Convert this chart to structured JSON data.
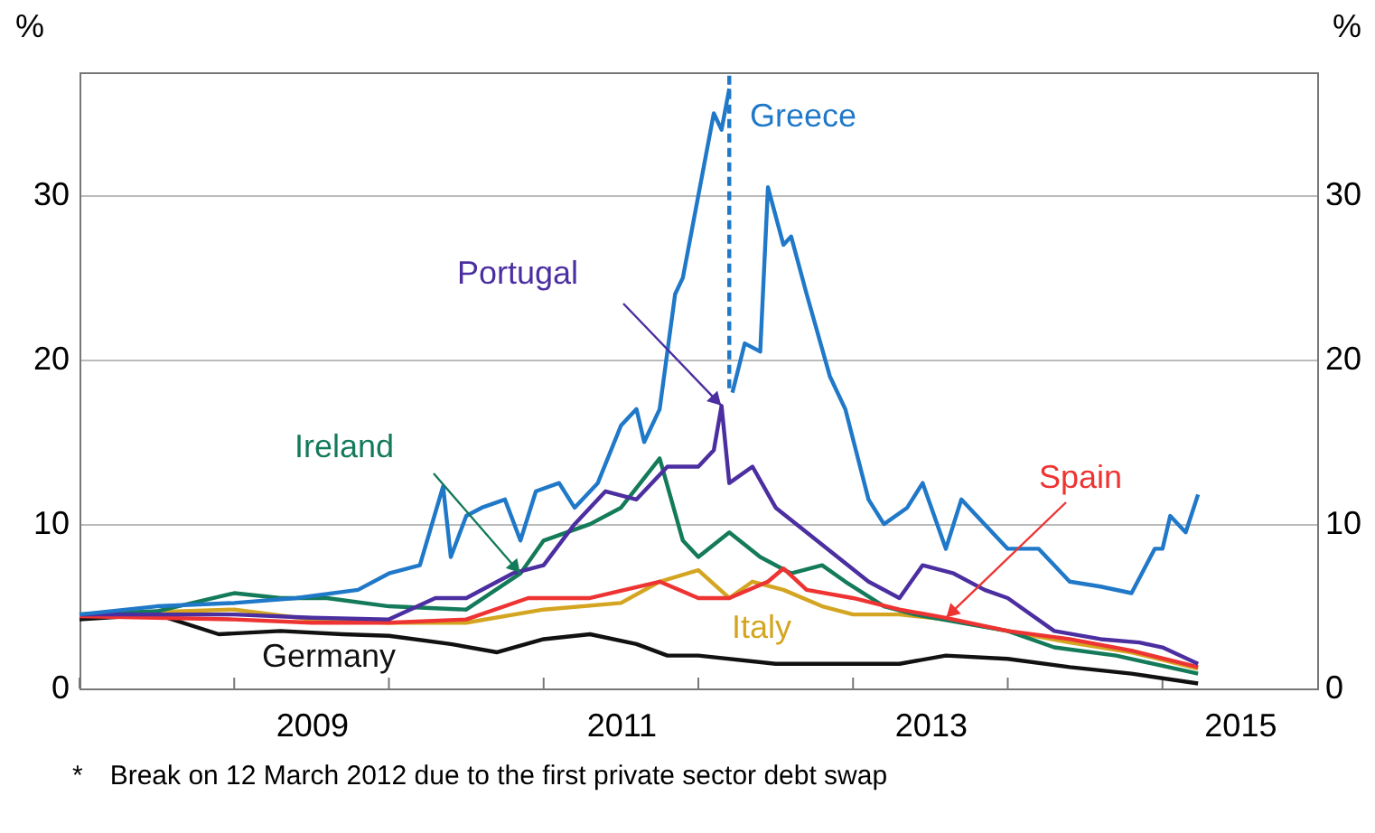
{
  "chart_data": {
    "type": "line",
    "ylabel": "%",
    "y2label": "%",
    "xlim": [
      2008,
      2016
    ],
    "ylim": [
      0,
      37.5
    ],
    "xticks": [
      {
        "value": 2008,
        "label": null
      },
      {
        "value": 2009,
        "label": null
      },
      {
        "value": 2009.5,
        "label": "2009"
      },
      {
        "value": 2010,
        "label": null
      },
      {
        "value": 2011,
        "label": null
      },
      {
        "value": 2011.5,
        "label": "2011"
      },
      {
        "value": 2012,
        "label": null
      },
      {
        "value": 2013,
        "label": null
      },
      {
        "value": 2013.5,
        "label": "2013"
      },
      {
        "value": 2014,
        "label": null
      },
      {
        "value": 2015,
        "label": null
      },
      {
        "value": 2015.5,
        "label": "2015"
      }
    ],
    "yticks": [
      0,
      10,
      20,
      30
    ],
    "y2lim": [
      0,
      37.5
    ],
    "y2ticks": [
      0,
      10,
      20,
      30
    ],
    "grid": "y",
    "legend": false,
    "line_style": "solid",
    "marker": "none",
    "series": [
      {
        "name": "Germany",
        "color": "#111111",
        "x": [
          2008,
          2008.5,
          2008.9,
          2009.3,
          2009.7,
          2010.0,
          2010.4,
          2010.7,
          2011.0,
          2011.3,
          2011.6,
          2011.8,
          2012.0,
          2012.5,
          2012.9,
          2013.3,
          2013.6,
          2014.0,
          2014.4,
          2014.8,
          2015.23
        ],
        "values": [
          4.2,
          4.5,
          3.3,
          3.5,
          3.3,
          3.2,
          2.7,
          2.2,
          3.0,
          3.3,
          2.7,
          2.0,
          2.0,
          1.5,
          1.5,
          1.5,
          2.0,
          1.8,
          1.3,
          0.9,
          0.3
        ]
      },
      {
        "name": "Italy",
        "color": "#d4a520",
        "x": [
          2008,
          2009,
          2009.5,
          2010,
          2010.5,
          2011,
          2011.5,
          2011.75,
          2012.0,
          2012.2,
          2012.35,
          2012.55,
          2012.8,
          2013.0,
          2013.3,
          2013.6,
          2014.0,
          2014.4,
          2014.8,
          2015.23
        ],
        "values": [
          4.5,
          4.8,
          4.2,
          4.0,
          4.0,
          4.8,
          5.2,
          6.5,
          7.2,
          5.5,
          6.5,
          6.0,
          5.0,
          4.5,
          4.5,
          4.2,
          3.5,
          2.8,
          2.2,
          1.2
        ]
      },
      {
        "name": "Ireland",
        "color": "#137a5a",
        "x": [
          2008,
          2008.5,
          2009.0,
          2009.3,
          2009.6,
          2010.0,
          2010.5,
          2010.85,
          2011.0,
          2011.3,
          2011.5,
          2011.75,
          2011.9,
          2012.0,
          2012.2,
          2012.4,
          2012.6,
          2012.8,
          2012.95,
          2013.2,
          2013.4,
          2013.7,
          2014.0,
          2014.3,
          2014.7,
          2015.23
        ],
        "values": [
          4.5,
          4.7,
          5.8,
          5.5,
          5.5,
          5.0,
          4.8,
          7.0,
          9.0,
          10.0,
          11.0,
          14.0,
          9.0,
          8.0,
          9.5,
          8.0,
          7.0,
          7.5,
          6.5,
          5.0,
          4.5,
          4.0,
          3.5,
          2.5,
          2.0,
          0.9
        ]
      },
      {
        "name": "Spain",
        "color": "#ee3333",
        "x": [
          2008,
          2009,
          2009.5,
          2010,
          2010.5,
          2010.9,
          2011.3,
          2011.75,
          2012.0,
          2012.2,
          2012.45,
          2012.55,
          2012.7,
          2013.0,
          2013.3,
          2013.6,
          2014.0,
          2014.4,
          2014.8,
          2015.23
        ],
        "values": [
          4.4,
          4.2,
          4.0,
          4.0,
          4.2,
          5.5,
          5.5,
          6.5,
          5.5,
          5.5,
          6.5,
          7.3,
          6.0,
          5.5,
          4.8,
          4.3,
          3.5,
          3.0,
          2.3,
          1.3
        ]
      },
      {
        "name": "Portugal",
        "color": "#4b2ea0",
        "x": [
          2008,
          2009,
          2009.5,
          2010,
          2010.3,
          2010.5,
          2010.8,
          2011.0,
          2011.2,
          2011.4,
          2011.6,
          2011.8,
          2012.0,
          2012.1,
          2012.15,
          2012.2,
          2012.35,
          2012.5,
          2012.7,
          2012.9,
          2013.1,
          2013.3,
          2013.45,
          2013.65,
          2013.85,
          2014.0,
          2014.3,
          2014.6,
          2014.85,
          2015.0,
          2015.23
        ],
        "values": [
          4.5,
          4.5,
          4.3,
          4.2,
          5.5,
          5.5,
          7.0,
          7.5,
          10.0,
          12.0,
          11.5,
          13.5,
          13.5,
          14.5,
          17.2,
          12.5,
          13.5,
          11.0,
          9.5,
          8.0,
          6.5,
          5.5,
          7.5,
          7.0,
          6.0,
          5.5,
          3.5,
          3.0,
          2.8,
          2.5,
          1.5
        ]
      },
      {
        "name": "Greece",
        "color": "#1f78c8",
        "x": [
          2008,
          2008.5,
          2009.0,
          2009.4,
          2009.8,
          2010.0,
          2010.2,
          2010.35,
          2010.4,
          2010.5,
          2010.6,
          2010.75,
          2010.85,
          2010.95,
          2011.1,
          2011.2,
          2011.35,
          2011.5,
          2011.6,
          2011.65,
          2011.75,
          2011.85,
          2011.9,
          2012.0,
          2012.1,
          2012.15,
          2012.2,
          2012.21,
          2012.22,
          2012.3,
          2012.4,
          2012.45,
          2012.55,
          2012.6,
          2012.7,
          2012.85,
          2012.95,
          2013.1,
          2013.2,
          2013.35,
          2013.45,
          2013.6,
          2013.7,
          2013.85,
          2014.0,
          2014.2,
          2014.4,
          2014.6,
          2014.8,
          2014.95,
          2015.0,
          2015.05,
          2015.15,
          2015.23
        ],
        "values": [
          4.5,
          5.0,
          5.2,
          5.5,
          6.0,
          7.0,
          7.5,
          12.3,
          8.0,
          10.5,
          11.0,
          11.5,
          9.0,
          12.0,
          12.5,
          11.0,
          12.5,
          16.0,
          17.0,
          15.0,
          17.0,
          24.0,
          25.0,
          30.0,
          35.0,
          34.0,
          36.5,
          null,
          18.0,
          21.0,
          20.5,
          30.5,
          27.0,
          27.5,
          24.0,
          19.0,
          17.0,
          11.5,
          10.0,
          11.0,
          12.5,
          8.5,
          11.5,
          10.0,
          8.5,
          8.5,
          6.5,
          6.2,
          5.8,
          8.5,
          8.5,
          10.5,
          9.5,
          11.8
        ]
      },
      {
        "color": "#1f78c8",
        "line_style": "dashed",
        "x": [
          2012.2,
          2012.2
        ],
        "values": [
          37.3,
          18.0
        ]
      }
    ],
    "annotations": [
      "* Break on 12 March 2012 due to the first private sector debt swap"
    ]
  }
}
